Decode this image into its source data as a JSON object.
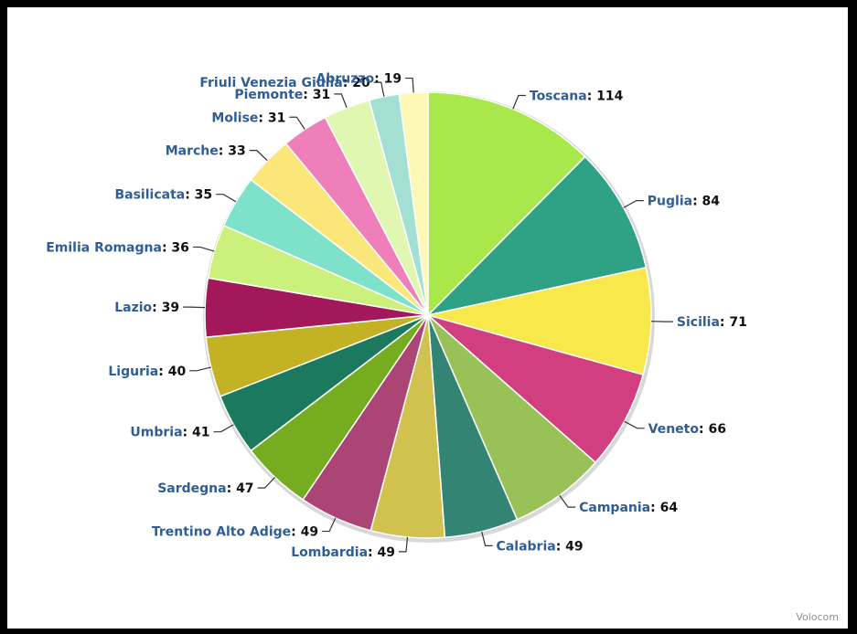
{
  "chart_data": {
    "type": "pie",
    "title": "",
    "legend": "none",
    "slices": [
      {
        "label": "Toscana",
        "value": 114,
        "color": "#a8e84a"
      },
      {
        "label": "Puglia",
        "value": 84,
        "color": "#2fa184"
      },
      {
        "label": "Sicilia",
        "value": 71,
        "color": "#f9e84b"
      },
      {
        "label": "Veneto",
        "value": 66,
        "color": "#d13f80"
      },
      {
        "label": "Campania",
        "value": 64,
        "color": "#98c257"
      },
      {
        "label": "Calabria",
        "value": 49,
        "color": "#348474"
      },
      {
        "label": "Lombardia",
        "value": 49,
        "color": "#d1c24f"
      },
      {
        "label": "Trentino Alto Adige",
        "value": 49,
        "color": "#ab4575"
      },
      {
        "label": "Sardegna",
        "value": 47,
        "color": "#75ac20"
      },
      {
        "label": "Umbria",
        "value": 41,
        "color": "#1b7a5d"
      },
      {
        "label": "Liguria",
        "value": 40,
        "color": "#c2b224"
      },
      {
        "label": "Lazio",
        "value": 39,
        "color": "#a2185a"
      },
      {
        "label": "Emilia Romagna",
        "value": 36,
        "color": "#ccf07c"
      },
      {
        "label": "Basilicata",
        "value": 35,
        "color": "#7ee2cb"
      },
      {
        "label": "Marche",
        "value": 33,
        "color": "#fbe67a"
      },
      {
        "label": "Molise",
        "value": 31,
        "color": "#ef7fba"
      },
      {
        "label": "Piemonte",
        "value": 31,
        "color": "#dff7b0"
      },
      {
        "label": "Friuli Venezia Giulia",
        "value": 20,
        "color": "#a3e0d3"
      },
      {
        "label": "Abruzzo",
        "value": 19,
        "color": "#fcf8b6"
      }
    ]
  },
  "credit": "Volocom"
}
